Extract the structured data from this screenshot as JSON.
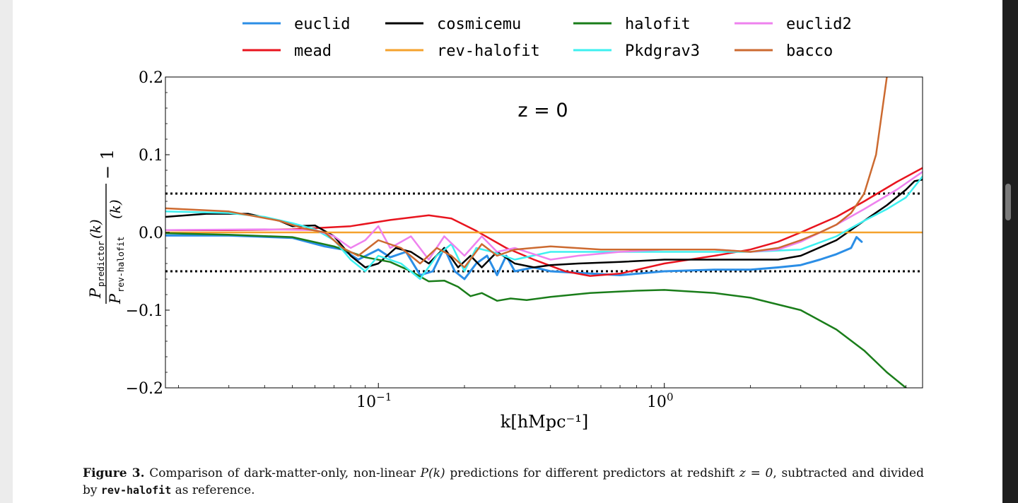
{
  "chart_data": {
    "type": "line",
    "title": "z = 0",
    "xlabel": "k[hMpc⁻¹]",
    "ylabel": "P_predictor(k) / P_rev-halofit(k) − 1",
    "ylabel_parts": {
      "num_main": "P",
      "num_sub": "predictor",
      "den_main": "P",
      "den_sub": "rev-halofit",
      "k": "(k)",
      "tail": "− 1"
    },
    "xscale": "log",
    "xlim": [
      0.018,
      8.0
    ],
    "ylim": [
      -0.2,
      0.2
    ],
    "yticks": [
      0.2,
      0.1,
      0.0,
      -0.1,
      -0.2
    ],
    "ytick_labels": [
      "0.2",
      "0.1",
      "0.0",
      "−0.1",
      "−0.2"
    ],
    "xticks": [
      {
        "value": 0.1,
        "base": "10",
        "exp": "−1"
      },
      {
        "value": 1.0,
        "base": "10",
        "exp": "0"
      }
    ],
    "reference_lines": [
      {
        "y": 0.05,
        "style": "dotted",
        "color": "#000000"
      },
      {
        "y": -0.05,
        "style": "dotted",
        "color": "#000000"
      }
    ],
    "legend_position": "top",
    "series": [
      {
        "name": "euclid",
        "color": "#2b8ee6",
        "width": 3,
        "points": [
          [
            0.018,
            -0.004
          ],
          [
            0.03,
            -0.004
          ],
          [
            0.05,
            -0.007
          ],
          [
            0.065,
            -0.018
          ],
          [
            0.075,
            -0.022
          ],
          [
            0.085,
            -0.035
          ],
          [
            0.1,
            -0.022
          ],
          [
            0.11,
            -0.032
          ],
          [
            0.125,
            -0.025
          ],
          [
            0.14,
            -0.055
          ],
          [
            0.155,
            -0.05
          ],
          [
            0.17,
            -0.02
          ],
          [
            0.185,
            -0.05
          ],
          [
            0.2,
            -0.06
          ],
          [
            0.22,
            -0.04
          ],
          [
            0.24,
            -0.03
          ],
          [
            0.26,
            -0.055
          ],
          [
            0.28,
            -0.03
          ],
          [
            0.3,
            -0.05
          ],
          [
            0.35,
            -0.045
          ],
          [
            0.4,
            -0.05
          ],
          [
            0.5,
            -0.052
          ],
          [
            0.7,
            -0.055
          ],
          [
            1.0,
            -0.05
          ],
          [
            1.5,
            -0.048
          ],
          [
            2.0,
            -0.048
          ],
          [
            2.5,
            -0.045
          ],
          [
            3.0,
            -0.042
          ],
          [
            3.5,
            -0.035
          ],
          [
            4.0,
            -0.028
          ],
          [
            4.5,
            -0.02
          ],
          [
            4.7,
            -0.006
          ],
          [
            4.9,
            -0.012
          ]
        ]
      },
      {
        "name": "mead",
        "color": "#e8141e",
        "width": 2.5,
        "points": [
          [
            0.018,
            0.003
          ],
          [
            0.03,
            0.003
          ],
          [
            0.05,
            0.004
          ],
          [
            0.08,
            0.008
          ],
          [
            0.11,
            0.016
          ],
          [
            0.15,
            0.022
          ],
          [
            0.18,
            0.018
          ],
          [
            0.22,
            0.002
          ],
          [
            0.28,
            -0.02
          ],
          [
            0.35,
            -0.035
          ],
          [
            0.45,
            -0.05
          ],
          [
            0.55,
            -0.056
          ],
          [
            0.7,
            -0.053
          ],
          [
            1.0,
            -0.04
          ],
          [
            1.5,
            -0.03
          ],
          [
            2.0,
            -0.022
          ],
          [
            2.5,
            -0.012
          ],
          [
            3.0,
            0.0
          ],
          [
            4.0,
            0.02
          ],
          [
            5.0,
            0.04
          ],
          [
            6.5,
            0.065
          ],
          [
            8.0,
            0.083
          ]
        ]
      },
      {
        "name": "cosmicemu",
        "color": "#000000",
        "width": 2.5,
        "points": [
          [
            0.018,
            0.02
          ],
          [
            0.025,
            0.024
          ],
          [
            0.035,
            0.024
          ],
          [
            0.045,
            0.015
          ],
          [
            0.05,
            0.008
          ],
          [
            0.06,
            0.009
          ],
          [
            0.07,
            -0.005
          ],
          [
            0.08,
            -0.03
          ],
          [
            0.09,
            -0.045
          ],
          [
            0.1,
            -0.04
          ],
          [
            0.115,
            -0.02
          ],
          [
            0.13,
            -0.025
          ],
          [
            0.15,
            -0.04
          ],
          [
            0.17,
            -0.02
          ],
          [
            0.19,
            -0.045
          ],
          [
            0.21,
            -0.03
          ],
          [
            0.23,
            -0.045
          ],
          [
            0.26,
            -0.025
          ],
          [
            0.3,
            -0.04
          ],
          [
            0.35,
            -0.045
          ],
          [
            0.4,
            -0.042
          ],
          [
            0.5,
            -0.04
          ],
          [
            0.7,
            -0.038
          ],
          [
            1.0,
            -0.035
          ],
          [
            1.5,
            -0.035
          ],
          [
            2.0,
            -0.035
          ],
          [
            2.5,
            -0.035
          ],
          [
            3.0,
            -0.03
          ],
          [
            4.0,
            -0.01
          ],
          [
            5.0,
            0.015
          ],
          [
            6.0,
            0.035
          ],
          [
            7.0,
            0.055
          ],
          [
            7.5,
            0.066
          ],
          [
            8.0,
            0.068
          ]
        ]
      },
      {
        "name": "rev-halofit",
        "color": "#f5a22d",
        "width": 2.5,
        "points": [
          [
            0.018,
            0.0
          ],
          [
            8.0,
            0.0
          ]
        ]
      },
      {
        "name": "halofit",
        "color": "#1a7d1a",
        "width": 2.5,
        "points": [
          [
            0.018,
            -0.001
          ],
          [
            0.03,
            -0.003
          ],
          [
            0.05,
            -0.006
          ],
          [
            0.07,
            -0.018
          ],
          [
            0.09,
            -0.032
          ],
          [
            0.11,
            -0.038
          ],
          [
            0.13,
            -0.05
          ],
          [
            0.15,
            -0.063
          ],
          [
            0.17,
            -0.062
          ],
          [
            0.19,
            -0.07
          ],
          [
            0.21,
            -0.082
          ],
          [
            0.23,
            -0.078
          ],
          [
            0.26,
            -0.088
          ],
          [
            0.29,
            -0.085
          ],
          [
            0.33,
            -0.087
          ],
          [
            0.4,
            -0.083
          ],
          [
            0.55,
            -0.078
          ],
          [
            0.8,
            -0.075
          ],
          [
            1.0,
            -0.074
          ],
          [
            1.5,
            -0.078
          ],
          [
            2.0,
            -0.084
          ],
          [
            3.0,
            -0.1
          ],
          [
            4.0,
            -0.125
          ],
          [
            5.0,
            -0.152
          ],
          [
            6.0,
            -0.18
          ],
          [
            7.0,
            -0.2
          ]
        ]
      },
      {
        "name": "Pkdgrav3",
        "color": "#3ef0f0",
        "width": 2.5,
        "points": [
          [
            0.018,
            0.027
          ],
          [
            0.03,
            0.025
          ],
          [
            0.04,
            0.02
          ],
          [
            0.05,
            0.012
          ],
          [
            0.06,
            0.004
          ],
          [
            0.07,
            -0.01
          ],
          [
            0.08,
            -0.035
          ],
          [
            0.09,
            -0.05
          ],
          [
            0.1,
            -0.03
          ],
          [
            0.12,
            -0.04
          ],
          [
            0.14,
            -0.06
          ],
          [
            0.16,
            -0.03
          ],
          [
            0.18,
            -0.015
          ],
          [
            0.2,
            -0.05
          ],
          [
            0.22,
            -0.02
          ],
          [
            0.25,
            -0.025
          ],
          [
            0.3,
            -0.035
          ],
          [
            0.4,
            -0.025
          ],
          [
            0.6,
            -0.025
          ],
          [
            1.0,
            -0.025
          ],
          [
            1.5,
            -0.025
          ],
          [
            2.0,
            -0.025
          ],
          [
            3.0,
            -0.022
          ],
          [
            4.0,
            -0.005
          ],
          [
            5.0,
            0.015
          ],
          [
            6.0,
            0.03
          ],
          [
            7.0,
            0.045
          ],
          [
            8.0,
            0.072
          ]
        ]
      },
      {
        "name": "euclid2",
        "color": "#ee82ee",
        "width": 2.5,
        "points": [
          [
            0.018,
            0.003
          ],
          [
            0.04,
            0.004
          ],
          [
            0.06,
            0.003
          ],
          [
            0.07,
            -0.005
          ],
          [
            0.08,
            -0.02
          ],
          [
            0.09,
            -0.01
          ],
          [
            0.1,
            0.008
          ],
          [
            0.11,
            -0.02
          ],
          [
            0.13,
            -0.005
          ],
          [
            0.15,
            -0.035
          ],
          [
            0.17,
            -0.005
          ],
          [
            0.2,
            -0.03
          ],
          [
            0.23,
            -0.005
          ],
          [
            0.26,
            -0.025
          ],
          [
            0.3,
            -0.02
          ],
          [
            0.4,
            -0.035
          ],
          [
            0.5,
            -0.03
          ],
          [
            0.7,
            -0.025
          ],
          [
            1.0,
            -0.022
          ],
          [
            1.5,
            -0.022
          ],
          [
            2.0,
            -0.025
          ],
          [
            2.5,
            -0.022
          ],
          [
            3.0,
            -0.012
          ],
          [
            4.0,
            0.01
          ],
          [
            5.0,
            0.03
          ],
          [
            6.5,
            0.055
          ],
          [
            8.0,
            0.078
          ]
        ]
      },
      {
        "name": "bacco",
        "color": "#cc6a30",
        "width": 2.5,
        "points": [
          [
            0.018,
            0.031
          ],
          [
            0.03,
            0.027
          ],
          [
            0.045,
            0.015
          ],
          [
            0.055,
            0.005
          ],
          [
            0.065,
            0.0
          ],
          [
            0.075,
            -0.02
          ],
          [
            0.085,
            -0.03
          ],
          [
            0.1,
            -0.01
          ],
          [
            0.12,
            -0.02
          ],
          [
            0.14,
            -0.04
          ],
          [
            0.16,
            -0.02
          ],
          [
            0.18,
            -0.03
          ],
          [
            0.2,
            -0.045
          ],
          [
            0.23,
            -0.015
          ],
          [
            0.26,
            -0.03
          ],
          [
            0.3,
            -0.022
          ],
          [
            0.4,
            -0.018
          ],
          [
            0.6,
            -0.022
          ],
          [
            1.0,
            -0.022
          ],
          [
            1.5,
            -0.022
          ],
          [
            2.0,
            -0.025
          ],
          [
            2.5,
            -0.02
          ],
          [
            3.0,
            -0.01
          ],
          [
            3.5,
            0.0
          ],
          [
            4.0,
            0.01
          ],
          [
            4.5,
            0.025
          ],
          [
            5.0,
            0.05
          ],
          [
            5.5,
            0.1
          ],
          [
            6.0,
            0.2
          ]
        ]
      }
    ]
  },
  "caption": {
    "label": "Figure 3.",
    "text_before": " Comparison of dark-matter-only, non-linear ",
    "pk": "P(k)",
    "text_middle": " predictions for different predictors at redshift ",
    "z": "z = 0",
    "text_after": ", subtracted and divided by ",
    "mono": "rev-halofit",
    "text_end": " as reference."
  }
}
